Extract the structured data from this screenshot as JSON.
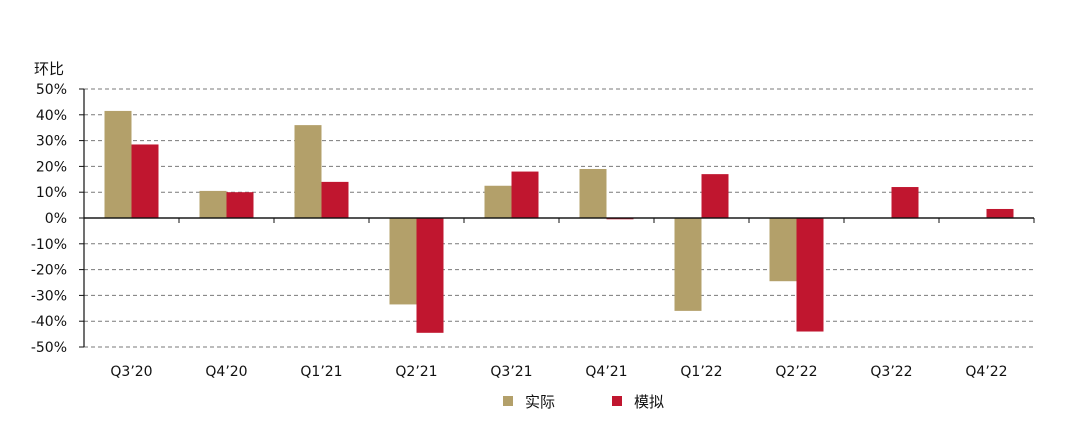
{
  "chart_data": {
    "type": "bar",
    "ylabel": "环比",
    "categories": [
      "Q3’20",
      "Q4’20",
      "Q1’21",
      "Q2’21",
      "Q3’21",
      "Q4’21",
      "Q1’22",
      "Q2’22",
      "Q3’22",
      "Q4’22"
    ],
    "series": [
      {
        "name": "实际",
        "color": "#B3A06A",
        "values": [
          41.5,
          10.5,
          36,
          -33.5,
          12.5,
          19,
          -36,
          -24.5,
          null,
          null
        ]
      },
      {
        "name": "模拟",
        "color": "#C0162F",
        "values": [
          28.5,
          10,
          14,
          -44.5,
          18,
          -0.5,
          17,
          -44,
          12,
          3.5
        ]
      }
    ],
    "ylim": [
      -50,
      50
    ],
    "yticks": [
      50,
      40,
      30,
      20,
      10,
      0,
      -10,
      -20,
      -30,
      -40,
      -50
    ],
    "ytick_labels": [
      "50%",
      "40%",
      "30%",
      "20%",
      "10%",
      "0%",
      "-10%",
      "-20%",
      "-30%",
      "-40%",
      "-50%"
    ],
    "grid": true,
    "grid_style": "dashed",
    "legend_position": "bottom-center"
  }
}
